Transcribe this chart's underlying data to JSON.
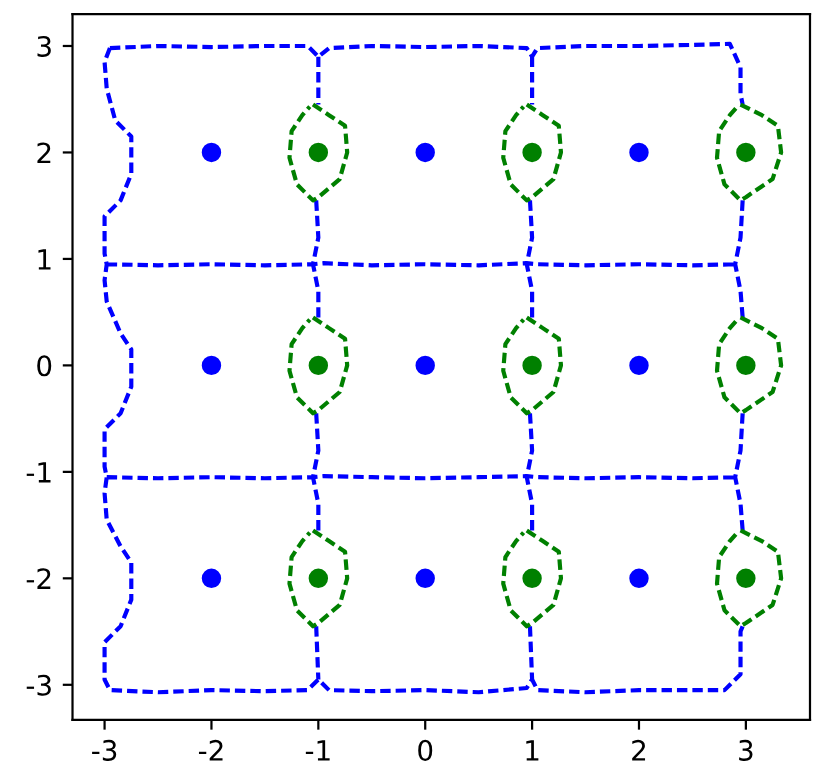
{
  "chart_data": {
    "type": "line",
    "xlim": [
      -3.3,
      3.6
    ],
    "ylim": [
      -3.33,
      3.3
    ],
    "xticks": [
      -3,
      -2,
      -1,
      0,
      1,
      2,
      3
    ],
    "yticks": [
      -3,
      -2,
      -1,
      0,
      1,
      2,
      3
    ],
    "series": [
      {
        "type": "line",
        "color": "#0000ff",
        "line_style": "dashed",
        "marker": "none",
        "x": [
          -2.95,
          -3.0,
          -2.98,
          -2.9,
          -2.75,
          -2.75,
          -2.85,
          -3.0,
          -3.0,
          -2.98,
          -3.0,
          -2.98,
          -2.85,
          -2.75,
          -2.75,
          -2.85,
          -3.0,
          -3.0,
          -2.98,
          -3.0,
          -2.98,
          -2.85,
          -2.75,
          -2.75,
          -2.85,
          -3.0,
          -3.0,
          -2.95,
          -2.5,
          -2.0,
          -1.5,
          -1.1,
          -1.0,
          -0.9,
          -0.5,
          0.0,
          0.5,
          0.95,
          1.0,
          1.05,
          1.5,
          2.0,
          2.5,
          2.8,
          2.95,
          2.95,
          2.97,
          null,
          -2.95,
          -2.5,
          -2.0,
          -1.5,
          -1.1,
          -1.0,
          -0.9,
          -0.5,
          0.0,
          0.5,
          0.95,
          1.0,
          1.05,
          1.5,
          2.0,
          2.5,
          2.85,
          2.95,
          2.95,
          2.97,
          null,
          -2.98,
          -2.5,
          -2.0,
          -1.5,
          -1.05,
          -0.95,
          -0.5,
          0.0,
          0.5,
          0.95,
          1.05,
          1.5,
          2.0,
          2.5,
          2.9,
          null,
          -2.98,
          -2.5,
          -2.0,
          -1.5,
          -1.05,
          -0.95,
          -0.5,
          0.0,
          0.5,
          0.95,
          1.05,
          1.5,
          2.0,
          2.5,
          2.9,
          null,
          -1.0,
          -1.0,
          null,
          -1.02,
          -1.0,
          -1.05,
          -1.0,
          -1.0,
          null,
          -1.02,
          -1.0,
          -1.05,
          -1.0,
          -1.0,
          null,
          -1.02,
          -1.0,
          null,
          1.0,
          1.0,
          null,
          0.98,
          1.0,
          0.95,
          1.0,
          1.0,
          null,
          0.98,
          1.0,
          0.95,
          1.0,
          1.0,
          null,
          0.98,
          1.0,
          null,
          2.97,
          2.95,
          2.9,
          2.95,
          2.97,
          null,
          2.97,
          2.95,
          2.9,
          2.95,
          2.97
        ],
        "values": [
          2.98,
          2.85,
          2.6,
          2.3,
          2.15,
          1.8,
          1.55,
          1.4,
          1.05,
          0.95,
          0.8,
          0.6,
          0.3,
          0.15,
          -0.2,
          -0.45,
          -0.6,
          -0.95,
          -1.05,
          -1.2,
          -1.45,
          -1.7,
          -1.85,
          -2.2,
          -2.45,
          -2.6,
          -2.95,
          -3.05,
          -3.07,
          -3.05,
          -3.06,
          -3.05,
          -2.95,
          -3.05,
          -3.06,
          -3.05,
          -3.07,
          -3.03,
          -2.95,
          -3.05,
          -3.07,
          -3.05,
          -3.05,
          -3.05,
          -2.9,
          -2.5,
          -2.45,
          null,
          2.98,
          3.0,
          2.99,
          3.0,
          3.0,
          2.9,
          2.98,
          3.0,
          2.99,
          3.0,
          2.98,
          2.9,
          2.98,
          3.0,
          3.0,
          3.01,
          3.02,
          2.8,
          2.55,
          2.45,
          null,
          0.95,
          0.94,
          0.95,
          0.94,
          0.95,
          0.96,
          0.94,
          0.95,
          0.94,
          0.96,
          0.95,
          0.94,
          0.95,
          0.94,
          0.95,
          null,
          -1.05,
          -1.06,
          -1.05,
          -1.06,
          -1.05,
          -1.04,
          -1.05,
          -1.06,
          -1.05,
          -1.04,
          -1.05,
          -1.06,
          -1.05,
          -1.06,
          -1.05,
          null,
          2.9,
          2.45,
          null,
          1.55,
          1.2,
          0.95,
          0.7,
          0.45,
          null,
          -0.45,
          -0.8,
          -1.05,
          -1.3,
          -1.55,
          null,
          -2.45,
          -2.95,
          null,
          2.9,
          2.45,
          null,
          1.55,
          1.2,
          0.95,
          0.7,
          0.45,
          null,
          -0.45,
          -0.8,
          -1.05,
          -1.3,
          -1.55,
          null,
          -2.45,
          -2.95,
          null,
          1.55,
          1.2,
          0.95,
          0.7,
          0.45,
          null,
          -0.45,
          -0.8,
          -1.05,
          -1.3,
          -1.55
        ]
      },
      {
        "type": "line",
        "color": "#008000",
        "line_style": "dashed",
        "marker": "none",
        "x": [
          -1.05,
          -0.9,
          -0.75,
          -0.73,
          -0.8,
          -1.0,
          -1.05,
          -1.2,
          -1.27,
          -1.25,
          -1.15,
          -1.08
        ],
        "values": [
          2.45,
          2.35,
          2.25,
          2.0,
          1.75,
          1.58,
          1.55,
          1.7,
          1.95,
          2.2,
          2.35,
          2.43
        ]
      },
      {
        "color": "#008000",
        "line_style": "dashed",
        "marker": "none",
        "x": [
          -1.05,
          -0.9,
          -0.75,
          -0.73,
          -0.8,
          -1.0,
          -1.05,
          -1.2,
          -1.27,
          -1.25,
          -1.15,
          -1.08
        ],
        "values": [
          0.45,
          0.35,
          0.25,
          0.0,
          -0.25,
          -0.42,
          -0.45,
          -0.3,
          -0.05,
          0.2,
          0.35,
          0.43
        ]
      },
      {
        "color": "#008000",
        "line_style": "dashed",
        "marker": "none",
        "x": [
          -1.05,
          -0.9,
          -0.75,
          -0.73,
          -0.8,
          -1.0,
          -1.05,
          -1.2,
          -1.27,
          -1.25,
          -1.15,
          -1.08
        ],
        "values": [
          -1.55,
          -1.65,
          -1.75,
          -2.0,
          -2.25,
          -2.42,
          -2.45,
          -2.3,
          -2.05,
          -1.8,
          -1.65,
          -1.57
        ]
      },
      {
        "color": "#008000",
        "line_style": "dashed",
        "marker": "none",
        "x": [
          0.95,
          1.1,
          1.25,
          1.27,
          1.2,
          1.0,
          0.95,
          0.8,
          0.73,
          0.75,
          0.85,
          0.92
        ],
        "values": [
          2.45,
          2.35,
          2.25,
          2.0,
          1.75,
          1.58,
          1.55,
          1.7,
          1.95,
          2.2,
          2.35,
          2.43
        ]
      },
      {
        "color": "#008000",
        "line_style": "dashed",
        "marker": "none",
        "x": [
          0.95,
          1.1,
          1.25,
          1.27,
          1.2,
          1.0,
          0.95,
          0.8,
          0.73,
          0.75,
          0.85,
          0.92
        ],
        "values": [
          0.45,
          0.35,
          0.25,
          0.0,
          -0.25,
          -0.42,
          -0.45,
          -0.3,
          -0.05,
          0.2,
          0.35,
          0.43
        ]
      },
      {
        "color": "#008000",
        "line_style": "dashed",
        "marker": "none",
        "x": [
          0.95,
          1.1,
          1.25,
          1.27,
          1.2,
          1.0,
          0.95,
          0.8,
          0.73,
          0.75,
          0.85,
          0.92
        ],
        "values": [
          -1.55,
          -1.65,
          -1.75,
          -2.0,
          -2.25,
          -2.42,
          -2.45,
          -2.3,
          -2.05,
          -1.8,
          -1.65,
          -1.57
        ]
      },
      {
        "color": "#008000",
        "line_style": "dashed",
        "marker": "none",
        "x": [
          2.95,
          3.15,
          3.3,
          3.33,
          3.25,
          3.0,
          2.95,
          2.8,
          2.73,
          2.75,
          2.85,
          2.92
        ],
        "values": [
          2.45,
          2.35,
          2.25,
          2.0,
          1.75,
          1.58,
          1.55,
          1.7,
          1.95,
          2.2,
          2.35,
          2.43
        ]
      },
      {
        "color": "#008000",
        "line_style": "dashed",
        "marker": "none",
        "x": [
          2.95,
          3.15,
          3.3,
          3.33,
          3.25,
          3.0,
          2.95,
          2.8,
          2.73,
          2.75,
          2.85,
          2.92
        ],
        "values": [
          0.45,
          0.35,
          0.25,
          0.0,
          -0.25,
          -0.42,
          -0.45,
          -0.3,
          -0.05,
          0.2,
          0.35,
          0.43
        ]
      },
      {
        "color": "#008000",
        "line_style": "dashed",
        "marker": "none",
        "x": [
          2.95,
          3.15,
          3.3,
          3.33,
          3.25,
          3.0,
          2.95,
          2.8,
          2.73,
          2.75,
          2.85,
          2.92
        ],
        "values": [
          -1.55,
          -1.65,
          -1.75,
          -2.0,
          -2.25,
          -2.42,
          -2.45,
          -2.3,
          -2.05,
          -1.8,
          -1.65,
          -1.57
        ]
      },
      {
        "type": "scatter",
        "color": "#0000ff",
        "marker": "circle",
        "x": [
          -2,
          0,
          2,
          -2,
          0,
          2,
          -2,
          0,
          2
        ],
        "values": [
          2,
          2,
          2,
          0,
          0,
          0,
          -2,
          -2,
          -2
        ]
      },
      {
        "type": "scatter",
        "color": "#008000",
        "marker": "circle",
        "x": [
          -1,
          1,
          3,
          -1,
          1,
          3,
          -1,
          1,
          3
        ],
        "values": [
          2,
          2,
          2,
          0,
          0,
          0,
          -2,
          -2,
          -2
        ]
      }
    ]
  }
}
